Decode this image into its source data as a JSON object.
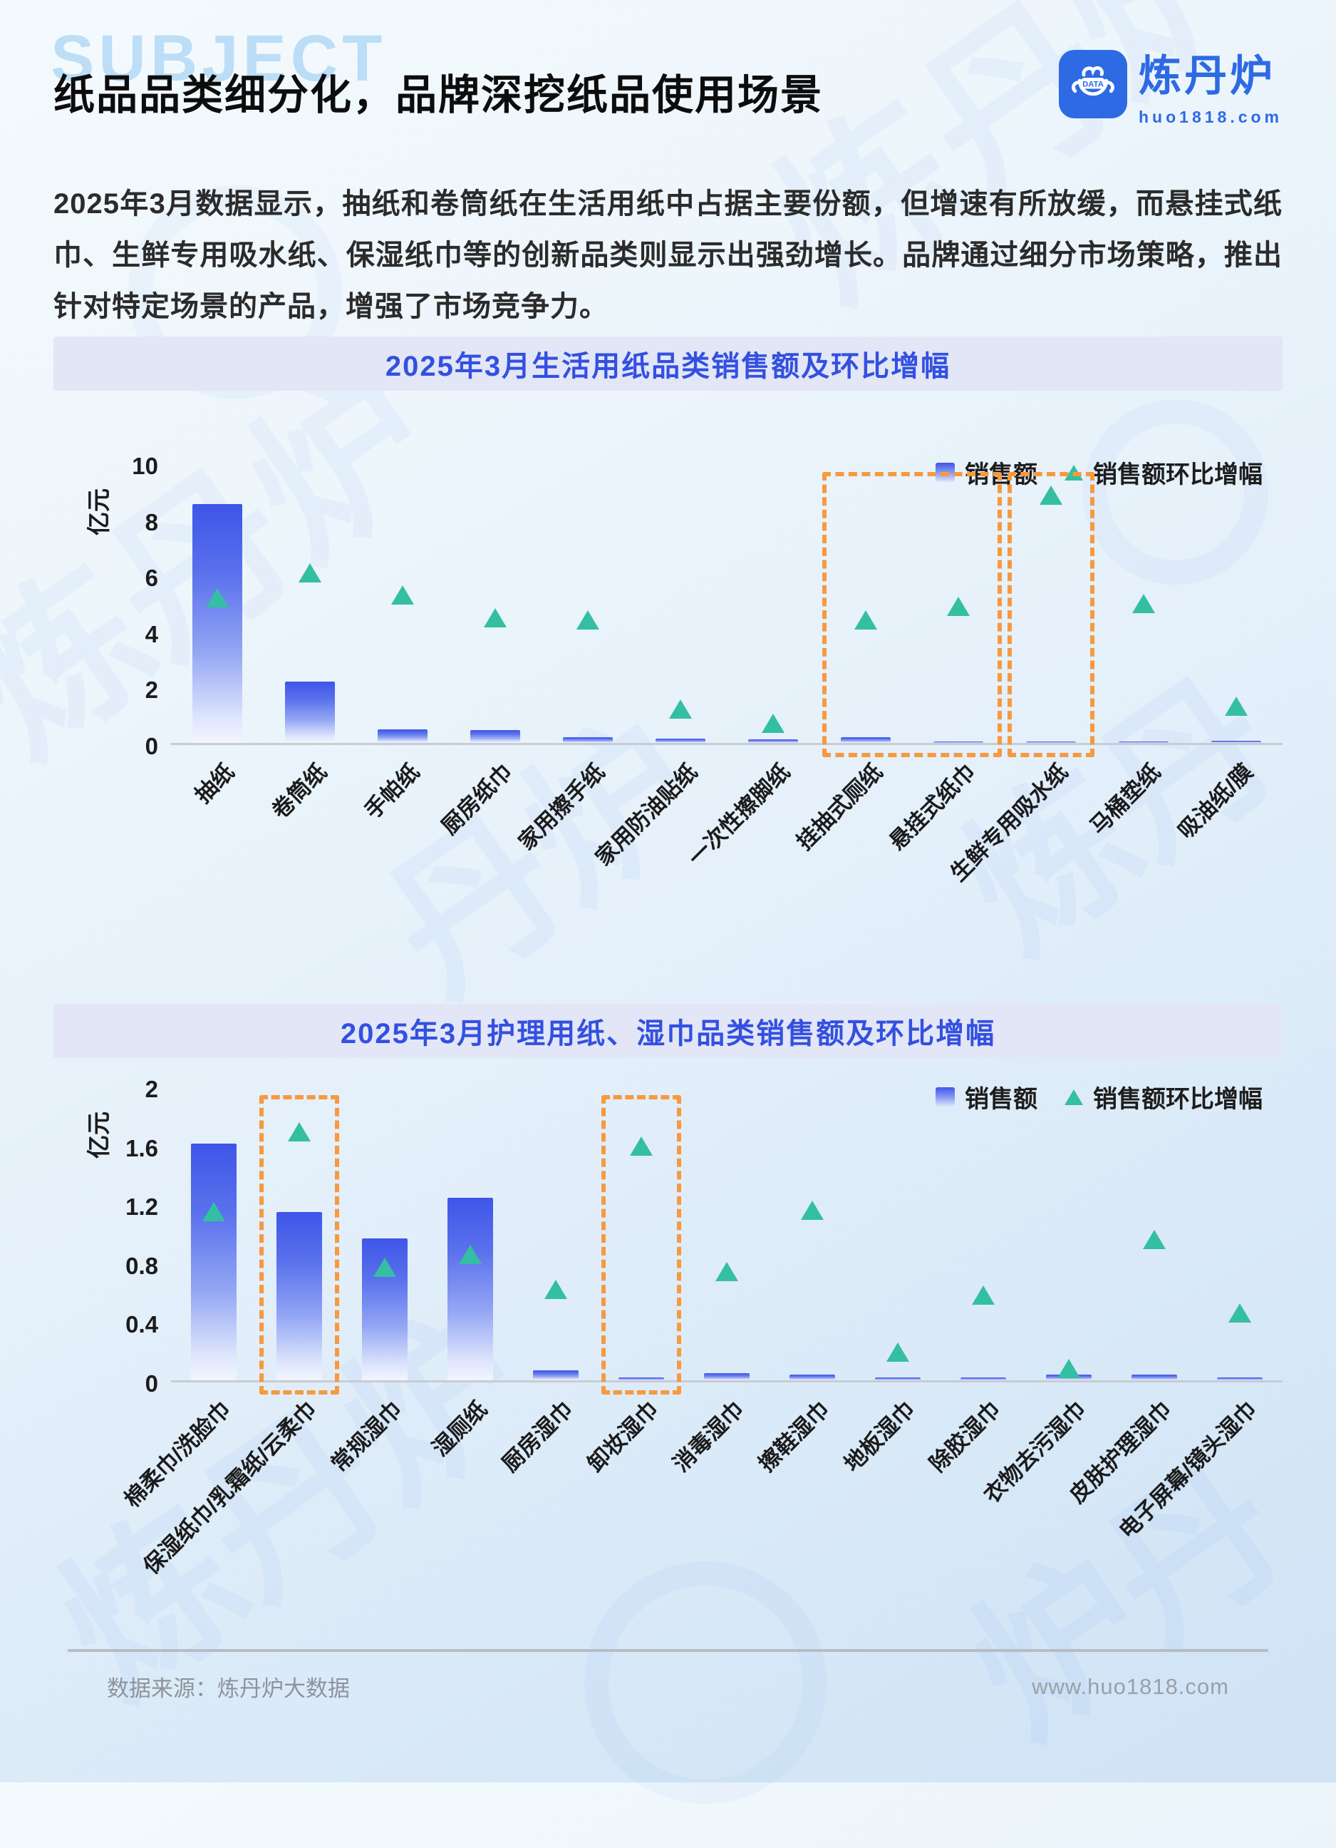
{
  "header": {
    "subject_watermark": "SUBJECT",
    "title": "纸品品类细分化，品牌深挖纸品使用场景",
    "logo": {
      "brand": "炼丹炉",
      "domain": "huo1818.com",
      "badge": "DATA"
    }
  },
  "intro": "2025年3月数据显示，抽纸和卷筒纸在生活用纸中占据主要份额，但增速有所放缓，而悬挂式纸巾、生鲜专用吸水纸、保湿纸巾等的创新品类则显示出强劲增长。品牌通过细分市场策略，推出针对特定场景的产品，增强了市场竞争力。",
  "colors": {
    "accent": "#3e55e9",
    "triangle": "#34bfa2",
    "highlight": "#f7993f",
    "banner-text": "#3350e0",
    "logo-blue": "#2d6ae4"
  },
  "chart_data": [
    {
      "type": "bar",
      "title": "2025年3月生活用纸品类销售额及环比增幅",
      "ylabel": "亿元",
      "xlabel": "",
      "ylim": [
        0,
        10
      ],
      "yticks": [
        0,
        2,
        4,
        6,
        8,
        10
      ],
      "grid": false,
      "legend_position": "top-right",
      "categories": [
        "抽纸",
        "卷筒纸",
        "手帕纸",
        "厨房纸巾",
        "家用擦手纸",
        "家用防油贴纸",
        "一次性擦脚纸",
        "挂抽式厕纸",
        "悬挂式纸巾",
        "生鲜专用吸水纸",
        "马桶垫纸",
        "吸油纸/膜"
      ],
      "series": [
        {
          "name": "销售额",
          "marker": "bar",
          "values": [
            8.6,
            2.2,
            0.5,
            0.45,
            0.2,
            0.15,
            0.12,
            0.2,
            0.06,
            0.04,
            0.06,
            0.07
          ]
        },
        {
          "name": "销售额环比增幅",
          "marker": "triangle",
          "values": [
            5.2,
            6.1,
            5.3,
            4.5,
            4.4,
            1.2,
            0.7,
            4.4,
            4.9,
            8.9,
            5.0,
            1.3
          ]
        }
      ],
      "highlights": [
        {
          "from": 7,
          "to": 8
        },
        {
          "from": 9,
          "to": 9
        }
      ]
    },
    {
      "type": "bar",
      "title": "2025年3月护理用纸、湿巾品类销售额及环比增幅",
      "ylabel": "亿元",
      "xlabel": "",
      "ylim": [
        0,
        2
      ],
      "yticks": [
        0,
        0.4,
        0.8,
        1.2,
        1.6,
        2
      ],
      "grid": false,
      "legend_position": "top-right",
      "categories": [
        "棉柔巾/洗脸巾",
        "保湿纸巾/乳霜纸/云柔巾",
        "常规湿巾",
        "湿厕纸",
        "厨房湿巾",
        "卸妆湿巾",
        "消毒湿巾",
        "擦鞋湿巾",
        "地板湿巾",
        "除胶湿巾",
        "衣物去污湿巾",
        "皮肤护理湿巾",
        "电子屏幕/镜头湿巾"
      ],
      "series": [
        {
          "name": "销售额",
          "marker": "bar",
          "values": [
            1.62,
            1.15,
            0.97,
            1.25,
            0.07,
            0.02,
            0.05,
            0.04,
            0.02,
            0.02,
            0.04,
            0.04,
            0.02
          ]
        },
        {
          "name": "销售额环比增幅",
          "marker": "triangle",
          "values": [
            1.15,
            1.7,
            0.77,
            0.86,
            0.62,
            1.6,
            0.74,
            1.16,
            0.19,
            0.58,
            0.08,
            0.96,
            0.46
          ]
        }
      ],
      "highlights": [
        {
          "from": 1,
          "to": 1
        },
        {
          "from": 5,
          "to": 5
        }
      ]
    }
  ],
  "footer": {
    "source": "数据来源：炼丹炉大数据",
    "url": "www.huo1818.com"
  }
}
